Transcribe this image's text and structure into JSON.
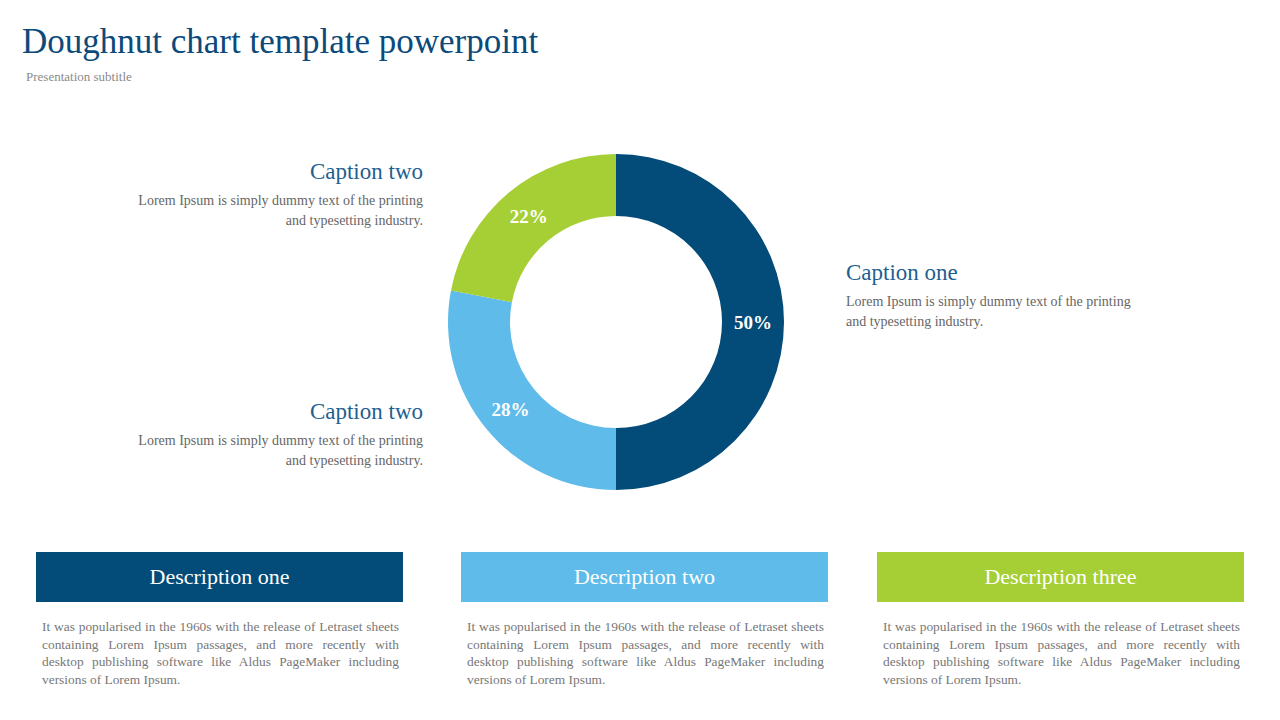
{
  "chart_data": {
    "type": "pie",
    "title": "Doughnut chart template powerpoint",
    "subtitle": "Presentation subtitle",
    "values": [
      50,
      28,
      22
    ],
    "value_labels": [
      "50%",
      "28%",
      "22%"
    ],
    "colors": [
      "#034b78",
      "#5fbbe9",
      "#a6cf35"
    ],
    "data_labels": true
  },
  "captions": [
    {
      "title": "Caption one",
      "text": "Lorem Ipsum is simply dummy text of the printing and typesetting industry."
    },
    {
      "title": "Caption two",
      "text": "Lorem Ipsum is simply dummy text of the printing and typesetting industry."
    },
    {
      "title": "Caption two",
      "text": "Lorem Ipsum is simply dummy text of the printing and typesetting industry."
    }
  ],
  "descriptions": [
    {
      "title": "Description one",
      "text": "It was popularised in the 1960s with the release of Letraset sheets containing Lorem Ipsum passages, and more recently with desktop publishing software like Aldus PageMaker including versions of Lorem Ipsum."
    },
    {
      "title": "Description two",
      "text": "It was popularised in the 1960s with the release of Letraset sheets containing Lorem Ipsum passages, and more recently with desktop publishing software like Aldus PageMaker including versions of Lorem Ipsum."
    },
    {
      "title": "Description three",
      "text": "It was popularised in the 1960s with the release of Letraset sheets containing Lorem Ipsum passages, and more recently with desktop publishing software like Aldus PageMaker including versions of Lorem Ipsum."
    }
  ]
}
